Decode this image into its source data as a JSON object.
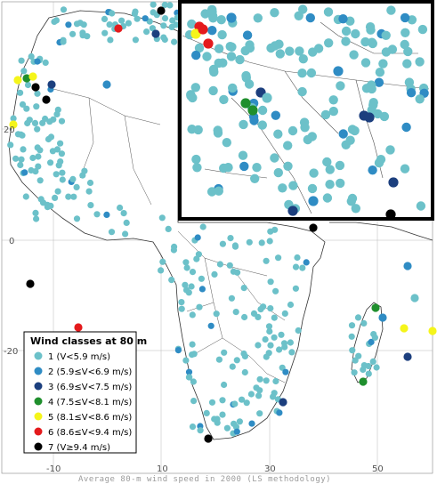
{
  "map": {
    "caption": "Average 80-m wind speed in 2000 (LS methodology)",
    "lon_ticks": [
      "-10",
      "10",
      "30",
      "50"
    ],
    "lat_ticks": [
      "20",
      "0",
      "-20"
    ],
    "colors": {
      "land": "#ffffff",
      "border": "#444444",
      "grid": "#b0b0b0",
      "inset_border": "#000000"
    }
  },
  "legend": {
    "title": "Wind classes at 80 m",
    "classes": [
      {
        "label": "1 (V<5.9 m/s)",
        "color": "#6cc1c9"
      },
      {
        "label": "2 (5.9≤V<6.9 m/s)",
        "color": "#2f8cc4"
      },
      {
        "label": "3 (6.9≤V<7.5 m/s)",
        "color": "#1c3f7e"
      },
      {
        "label": "4 (7.5≤V<8.1 m/s)",
        "color": "#1f8f2d"
      },
      {
        "label": "5 (8.1≤V<8.6 m/s)",
        "color": "#f5f51a"
      },
      {
        "label": "6 (8.6≤V<9.4 m/s)",
        "color": "#e41a1c"
      },
      {
        "label": "7 (V≥9.4 m/s)",
        "color": "#000000"
      }
    ]
  }
}
